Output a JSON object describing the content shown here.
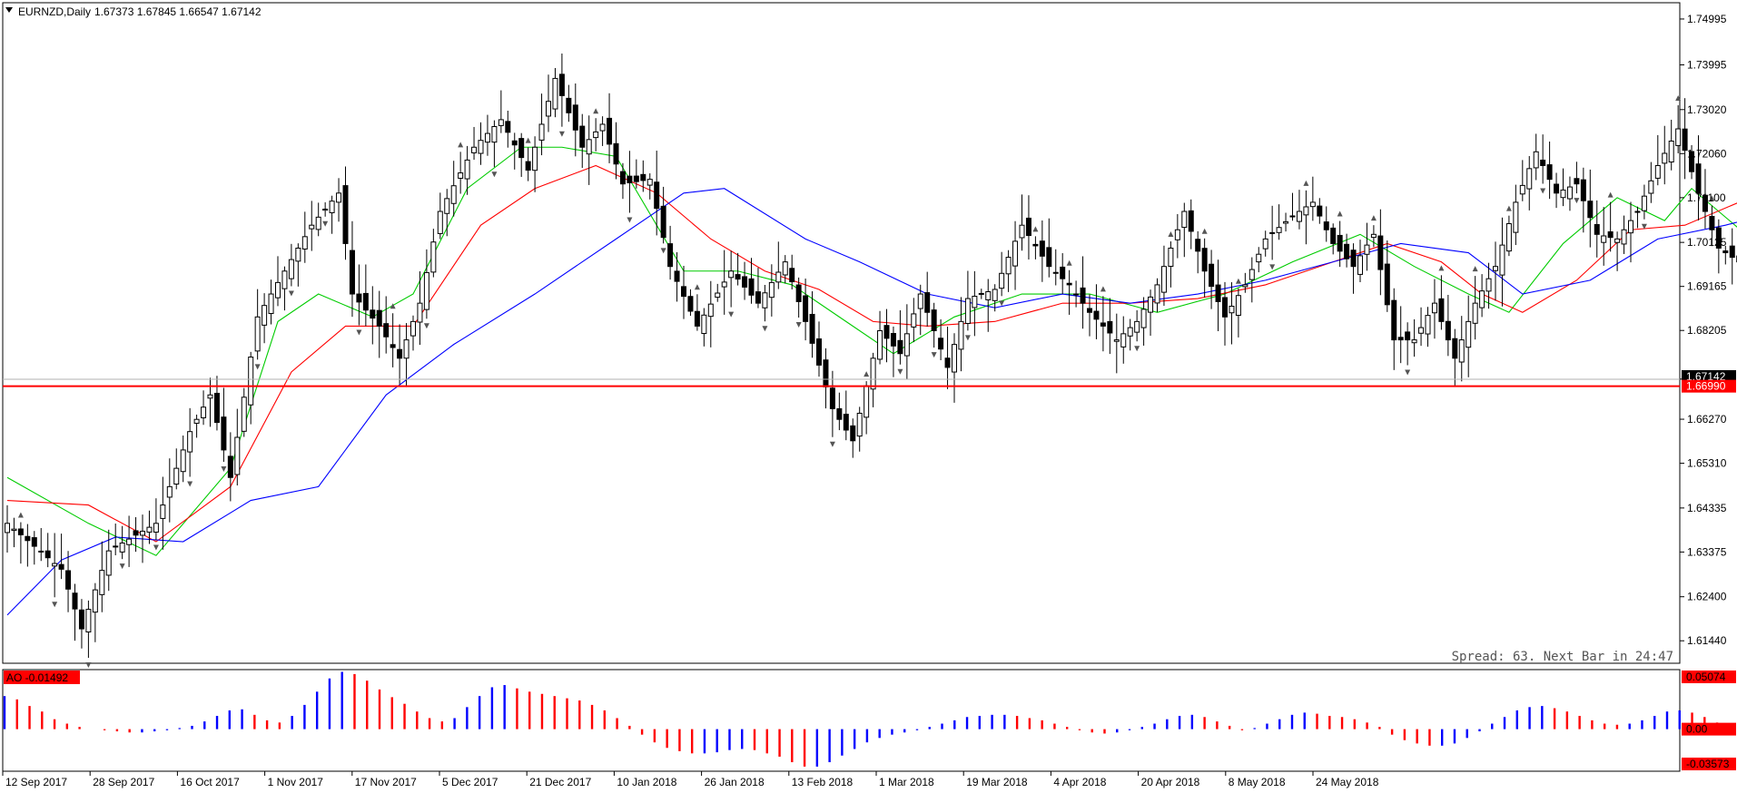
{
  "header": {
    "symbol": "EURNZD,Daily",
    "ohlc": "1.67373 1.67845 1.66547 1.67142"
  },
  "status": {
    "spread_text": "Spread: 63. Next Bar in 24:47"
  },
  "levels": {
    "support": 1.6699,
    "support_label": "1.66990",
    "current": 1.67142,
    "current_label": "1.67142"
  },
  "indicator": {
    "label": "AO -0.01492",
    "axis_labels": [
      "0.05074",
      "0.00",
      "-0.03573"
    ],
    "max": 0.05074,
    "min": -0.03573
  },
  "colors": {
    "up_candle": "#ffffff",
    "down_candle": "#000000",
    "ma_fast": "#00cc00",
    "ma_mid": "#ff0000",
    "ma_slow": "#0000ff",
    "support_line": "#ff0000",
    "ao_up": "#0000ff",
    "ao_down": "#ff0000",
    "highlight": "#ffff00"
  },
  "chart_data": {
    "type": "candlestick",
    "title": "EURNZD,Daily",
    "ylim": [
      1.6095,
      1.7535
    ],
    "price_ticks": [
      "1.74995",
      "1.73995",
      "1.73020",
      "1.72060",
      "1.71100",
      "1.70125",
      "1.69165",
      "1.68205",
      "1.67145",
      "1.66270",
      "1.65310",
      "1.64335",
      "1.63375",
      "1.62400",
      "1.61440"
    ],
    "date_labels": [
      "12 Sep 2017",
      "28 Sep 2017",
      "16 Oct 2017",
      "1 Nov 2017",
      "17 Nov 2017",
      "5 Dec 2017",
      "21 Dec 2017",
      "10 Jan 2018",
      "26 Jan 2018",
      "13 Feb 2018",
      "1 Mar 2018",
      "19 Mar 2018",
      "4 Apr 2018",
      "20 Apr 2018",
      "8 May 2018",
      "24 May 2018"
    ],
    "close_path": [
      [
        0,
        1.64
      ],
      [
        8,
        1.63
      ],
      [
        11,
        1.617
      ],
      [
        15,
        1.634
      ],
      [
        22,
        1.64
      ],
      [
        27,
        1.66
      ],
      [
        30,
        1.668
      ],
      [
        33,
        1.65
      ],
      [
        37,
        1.685
      ],
      [
        41,
        1.695
      ],
      [
        45,
        1.705
      ],
      [
        49,
        1.712
      ],
      [
        51,
        1.69
      ],
      [
        55,
        1.683
      ],
      [
        58,
        1.676
      ],
      [
        61,
        1.688
      ],
      [
        64,
        1.708
      ],
      [
        69,
        1.722
      ],
      [
        73,
        1.728
      ],
      [
        77,
        1.717
      ],
      [
        81,
        1.737
      ],
      [
        85,
        1.722
      ],
      [
        88,
        1.727
      ],
      [
        91,
        1.714
      ],
      [
        95,
        1.715
      ],
      [
        98,
        1.696
      ],
      [
        102,
        1.683
      ],
      [
        107,
        1.695
      ],
      [
        111,
        1.688
      ],
      [
        115,
        1.697
      ],
      [
        118,
        1.684
      ],
      [
        122,
        1.665
      ],
      [
        125,
        1.658
      ],
      [
        129,
        1.682
      ],
      [
        132,
        1.677
      ],
      [
        135,
        1.69
      ],
      [
        139,
        1.674
      ],
      [
        142,
        1.689
      ],
      [
        146,
        1.691
      ],
      [
        150,
        1.705
      ],
      [
        154,
        1.696
      ],
      [
        157,
        1.692
      ],
      [
        160,
        1.686
      ],
      [
        164,
        1.68
      ],
      [
        167,
        1.684
      ],
      [
        170,
        1.692
      ],
      [
        174,
        1.708
      ],
      [
        177,
        1.695
      ],
      [
        180,
        1.685
      ],
      [
        183,
        1.692
      ],
      [
        186,
        1.702
      ],
      [
        190,
        1.707
      ],
      [
        193,
        1.71
      ],
      [
        196,
        1.701
      ],
      [
        199,
        1.696
      ],
      [
        202,
        1.703
      ],
      [
        205,
        1.68
      ],
      [
        208,
        1.68
      ],
      [
        211,
        1.688
      ],
      [
        214,
        1.676
      ],
      [
        217,
        1.688
      ],
      [
        220,
        1.696
      ],
      [
        223,
        1.71
      ],
      [
        226,
        1.721
      ],
      [
        229,
        1.712
      ],
      [
        232,
        1.714
      ],
      [
        235,
        1.703
      ],
      [
        238,
        1.702
      ],
      [
        241,
        1.708
      ],
      [
        244,
        1.718
      ],
      [
        247,
        1.726
      ],
      [
        250,
        1.712
      ],
      [
        253,
        1.7
      ],
      [
        256,
        1.697
      ],
      [
        259,
        1.691
      ],
      [
        261,
        1.683
      ],
      [
        262,
        1.673
      ]
    ],
    "series": [
      {
        "name": "",
        "color": "#00cc00",
        "points": [
          [
            0,
            1.65
          ],
          [
            12,
            1.64
          ],
          [
            22,
            1.633
          ],
          [
            33,
            1.652
          ],
          [
            40,
            1.684
          ],
          [
            46,
            1.69
          ],
          [
            54,
            1.685
          ],
          [
            60,
            1.69
          ],
          [
            68,
            1.713
          ],
          [
            76,
            1.722
          ],
          [
            82,
            1.722
          ],
          [
            90,
            1.72
          ],
          [
            100,
            1.695
          ],
          [
            108,
            1.695
          ],
          [
            116,
            1.692
          ],
          [
            124,
            1.684
          ],
          [
            131,
            1.677
          ],
          [
            140,
            1.685
          ],
          [
            150,
            1.69
          ],
          [
            160,
            1.69
          ],
          [
            170,
            1.686
          ],
          [
            180,
            1.69
          ],
          [
            190,
            1.697
          ],
          [
            200,
            1.703
          ],
          [
            208,
            1.696
          ],
          [
            216,
            1.69
          ],
          [
            222,
            1.686
          ],
          [
            230,
            1.701
          ],
          [
            238,
            1.711
          ],
          [
            245,
            1.706
          ],
          [
            249,
            1.713
          ],
          [
            257,
            1.703
          ],
          [
            263,
            1.69
          ]
        ]
      },
      {
        "name": "",
        "color": "#ff0000",
        "points": [
          [
            0,
            1.645
          ],
          [
            12,
            1.644
          ],
          [
            22,
            1.636
          ],
          [
            33,
            1.648
          ],
          [
            42,
            1.673
          ],
          [
            50,
            1.683
          ],
          [
            60,
            1.683
          ],
          [
            70,
            1.705
          ],
          [
            78,
            1.713
          ],
          [
            87,
            1.718
          ],
          [
            96,
            1.712
          ],
          [
            104,
            1.702
          ],
          [
            112,
            1.695
          ],
          [
            120,
            1.691
          ],
          [
            128,
            1.684
          ],
          [
            136,
            1.683
          ],
          [
            146,
            1.684
          ],
          [
            156,
            1.688
          ],
          [
            166,
            1.688
          ],
          [
            176,
            1.689
          ],
          [
            186,
            1.692
          ],
          [
            196,
            1.697
          ],
          [
            204,
            1.701
          ],
          [
            212,
            1.697
          ],
          [
            218,
            1.69
          ],
          [
            224,
            1.686
          ],
          [
            232,
            1.693
          ],
          [
            240,
            1.704
          ],
          [
            248,
            1.705
          ],
          [
            256,
            1.71
          ],
          [
            263,
            1.704
          ],
          [
            266,
            1.698
          ]
        ]
      },
      {
        "name": "",
        "color": "#0000ff",
        "points": [
          [
            0,
            1.62
          ],
          [
            8,
            1.632
          ],
          [
            16,
            1.637
          ],
          [
            26,
            1.636
          ],
          [
            36,
            1.645
          ],
          [
            46,
            1.648
          ],
          [
            56,
            1.668
          ],
          [
            66,
            1.679
          ],
          [
            78,
            1.69
          ],
          [
            90,
            1.702
          ],
          [
            100,
            1.712
          ],
          [
            106,
            1.713
          ],
          [
            118,
            1.702
          ],
          [
            126,
            1.697
          ],
          [
            136,
            1.69
          ],
          [
            146,
            1.687
          ],
          [
            156,
            1.69
          ],
          [
            166,
            1.688
          ],
          [
            176,
            1.69
          ],
          [
            186,
            1.693
          ],
          [
            196,
            1.697
          ],
          [
            206,
            1.701
          ],
          [
            216,
            1.699
          ],
          [
            224,
            1.69
          ],
          [
            234,
            1.693
          ],
          [
            244,
            1.702
          ],
          [
            254,
            1.705
          ],
          [
            262,
            1.708
          ],
          [
            270,
            1.704
          ],
          [
            276,
            1.7
          ]
        ]
      }
    ],
    "ao_values": [
      0.03,
      0.027,
      0.021,
      0.016,
      0.009,
      0.005,
      0.002,
      0.0,
      -0.001,
      -0.002,
      -0.003,
      -0.003,
      -0.002,
      -0.001,
      0.001,
      0.003,
      0.007,
      0.012,
      0.017,
      0.018,
      0.013,
      0.008,
      0.006,
      0.012,
      0.022,
      0.034,
      0.046,
      0.052,
      0.05,
      0.044,
      0.036,
      0.029,
      0.023,
      0.016,
      0.01,
      0.007,
      0.01,
      0.02,
      0.03,
      0.038,
      0.04,
      0.037,
      0.034,
      0.032,
      0.03,
      0.028,
      0.026,
      0.022,
      0.017,
      0.01,
      0.003,
      -0.005,
      -0.012,
      -0.017,
      -0.02,
      -0.022,
      -0.022,
      -0.021,
      -0.019,
      -0.018,
      -0.019,
      -0.022,
      -0.025,
      -0.03,
      -0.034,
      -0.034,
      -0.03,
      -0.024,
      -0.018,
      -0.012,
      -0.008,
      -0.005,
      -0.003,
      -0.001,
      0.002,
      0.005,
      0.008,
      0.011,
      0.012,
      0.013,
      0.013,
      0.012,
      0.01,
      0.008,
      0.005,
      0.002,
      -0.001,
      -0.003,
      -0.004,
      -0.003,
      -0.001,
      0.002,
      0.005,
      0.009,
      0.012,
      0.013,
      0.011,
      0.007,
      0.003,
      -0.001,
      0.001,
      0.005,
      0.009,
      0.013,
      0.015,
      0.014,
      0.012,
      0.011,
      0.009,
      0.006,
      0.002,
      -0.005,
      -0.01,
      -0.013,
      -0.015,
      -0.015,
      -0.013,
      -0.008,
      -0.002,
      0.005,
      0.011,
      0.017,
      0.02,
      0.021,
      0.019,
      0.016,
      0.012,
      0.008,
      0.005,
      0.004,
      0.005,
      0.008,
      0.012,
      0.016,
      0.017,
      0.015,
      0.011,
      0.006,
      0.001,
      -0.004,
      -0.008,
      -0.012,
      -0.015
    ]
  }
}
